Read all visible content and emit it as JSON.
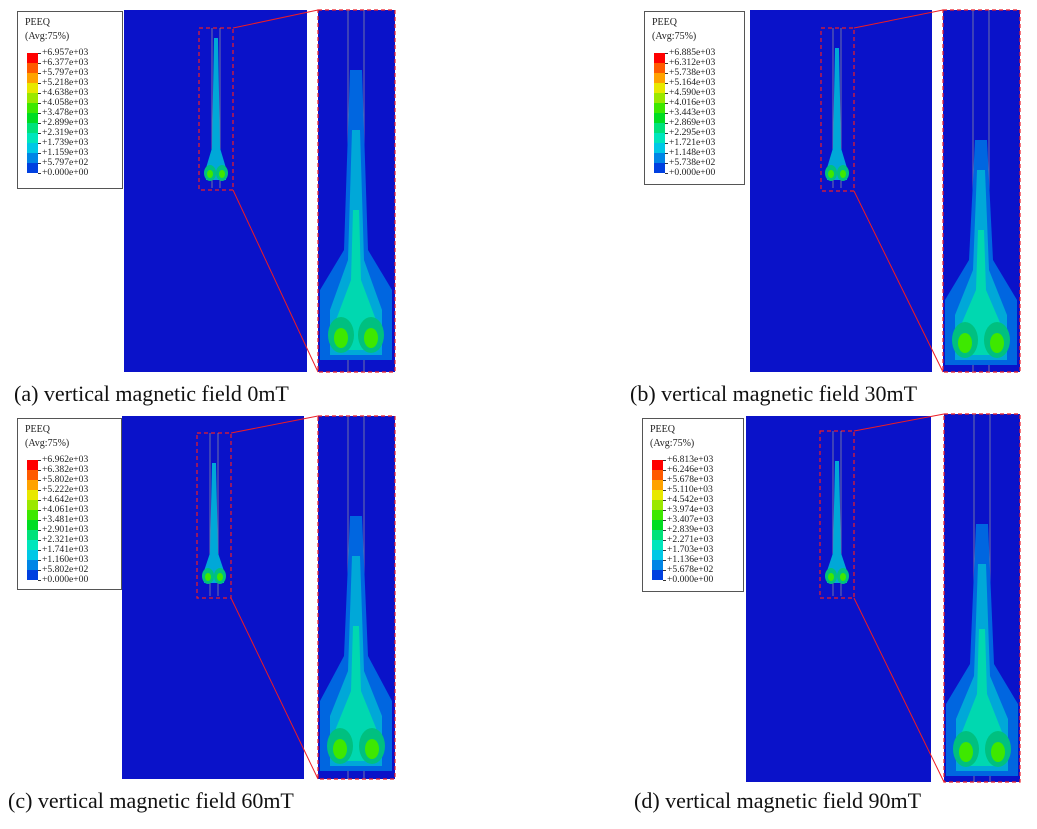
{
  "colors": {
    "background_field": "#0a12c9",
    "highlight": "#ee1c24",
    "legend_scale": [
      "#ff0000",
      "#ff5a00",
      "#ffa200",
      "#e8e800",
      "#9be800",
      "#3ee800",
      "#00dd22",
      "#00e27a",
      "#00e6bc",
      "#00c8e6",
      "#0085e6",
      "#0040e0",
      "#0000c8"
    ]
  },
  "panels": [
    {
      "id": "a",
      "caption": "(a) vertical magnetic field 0mT",
      "legend": {
        "title": "PEEQ",
        "subtitle": "(Avg:75%)",
        "values": [
          "+6.957e+03",
          "+6.377e+03",
          "+5.797e+03",
          "+5.218e+03",
          "+4.638e+03",
          "+4.058e+03",
          "+3.478e+03",
          "+2.899e+03",
          "+2.319e+03",
          "+1.739e+03",
          "+1.159e+03",
          "+5.797e+02",
          "+0.000e+00"
        ]
      }
    },
    {
      "id": "b",
      "caption": "(b) vertical magnetic field 30mT",
      "legend": {
        "title": "PEEQ",
        "subtitle": "(Avg:75%)",
        "values": [
          "+6.885e+03",
          "+6.312e+03",
          "+5.738e+03",
          "+5.164e+03",
          "+4.590e+03",
          "+4.016e+03",
          "+3.443e+03",
          "+2.869e+03",
          "+2.295e+03",
          "+1.721e+03",
          "+1.148e+03",
          "+5.738e+02",
          "+0.000e+00"
        ]
      }
    },
    {
      "id": "c",
      "caption": "(c) vertical magnetic field 60mT",
      "legend": {
        "title": "PEEQ",
        "subtitle": "(Avg:75%)",
        "values": [
          "+6.962e+03",
          "+6.382e+03",
          "+5.802e+03",
          "+5.222e+03",
          "+4.642e+03",
          "+4.061e+03",
          "+3.481e+03",
          "+2.901e+03",
          "+2.321e+03",
          "+1.741e+03",
          "+1.160e+03",
          "+5.802e+02",
          "+0.000e+00"
        ]
      }
    },
    {
      "id": "d",
      "caption": "(d) vertical magnetic field 90mT",
      "legend": {
        "title": "PEEQ",
        "subtitle": "(Avg:75%)",
        "values": [
          "+6.813e+03",
          "+6.246e+03",
          "+5.678e+03",
          "+5.110e+03",
          "+4.542e+03",
          "+3.974e+03",
          "+3.407e+03",
          "+2.839e+03",
          "+2.271e+03",
          "+1.703e+03",
          "+1.136e+03",
          "+5.678e+02",
          "+0.000e+00"
        ]
      }
    }
  ]
}
